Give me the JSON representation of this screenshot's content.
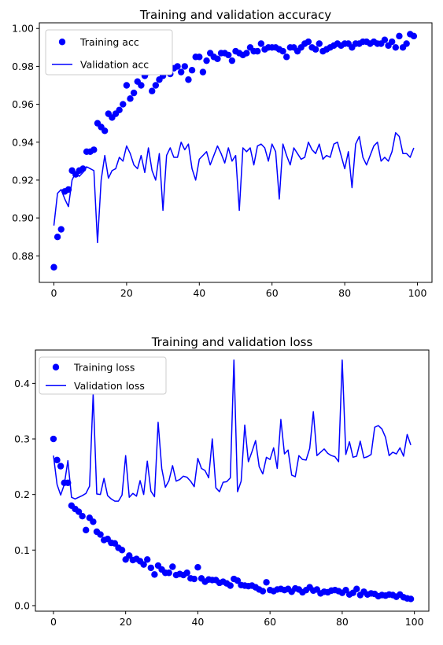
{
  "colors": {
    "series": "#0000ff",
    "axes": "#000000",
    "legend_border": "#cccccc"
  },
  "chart_data": [
    {
      "type": "line",
      "title": "Training and validation accuracy",
      "xlabel": "",
      "ylabel": "",
      "xlim": [
        -4,
        104
      ],
      "ylim": [
        0.866,
        1.003
      ],
      "xticks": [
        0,
        20,
        40,
        60,
        80,
        100
      ],
      "xtick_labels": [
        "0",
        "20",
        "40",
        "60",
        "80",
        "100"
      ],
      "yticks": [
        0.88,
        0.9,
        0.92,
        0.94,
        0.96,
        0.98,
        1.0
      ],
      "ytick_labels": [
        "0.88",
        "0.90",
        "0.92",
        "0.94",
        "0.96",
        "0.98",
        "1.00"
      ],
      "grid": false,
      "legend_position": "upper-left",
      "series": [
        {
          "name": "Training acc",
          "style": "markers",
          "x": [
            0,
            1,
            2,
            3,
            4,
            5,
            6,
            7,
            8,
            9,
            10,
            11,
            12,
            13,
            14,
            15,
            16,
            17,
            18,
            19,
            20,
            21,
            22,
            23,
            24,
            25,
            26,
            27,
            28,
            29,
            30,
            31,
            32,
            33,
            34,
            35,
            36,
            37,
            38,
            39,
            40,
            41,
            42,
            43,
            44,
            45,
            46,
            47,
            48,
            49,
            50,
            51,
            52,
            53,
            54,
            55,
            56,
            57,
            58,
            59,
            60,
            61,
            62,
            63,
            64,
            65,
            66,
            67,
            68,
            69,
            70,
            71,
            72,
            73,
            74,
            75,
            76,
            77,
            78,
            79,
            80,
            81,
            82,
            83,
            84,
            85,
            86,
            87,
            88,
            89,
            90,
            91,
            92,
            93,
            94,
            95,
            96,
            97,
            98,
            99
          ],
          "values": [
            0.874,
            0.89,
            0.894,
            0.914,
            0.915,
            0.925,
            0.923,
            0.925,
            0.926,
            0.935,
            0.935,
            0.936,
            0.95,
            0.948,
            0.946,
            0.955,
            0.953,
            0.955,
            0.957,
            0.96,
            0.97,
            0.963,
            0.966,
            0.972,
            0.97,
            0.975,
            0.977,
            0.967,
            0.97,
            0.973,
            0.975,
            0.978,
            0.976,
            0.979,
            0.98,
            0.977,
            0.98,
            0.973,
            0.978,
            0.985,
            0.985,
            0.977,
            0.983,
            0.987,
            0.985,
            0.984,
            0.987,
            0.987,
            0.986,
            0.983,
            0.988,
            0.987,
            0.986,
            0.987,
            0.99,
            0.988,
            0.988,
            0.992,
            0.989,
            0.99,
            0.99,
            0.99,
            0.989,
            0.988,
            0.985,
            0.99,
            0.99,
            0.988,
            0.99,
            0.992,
            0.993,
            0.99,
            0.989,
            0.992,
            0.988,
            0.989,
            0.99,
            0.991,
            0.992,
            0.991,
            0.992,
            0.992,
            0.99,
            0.992,
            0.992,
            0.993,
            0.993,
            0.992,
            0.993,
            0.992,
            0.992,
            0.994,
            0.991,
            0.993,
            0.99,
            0.996,
            0.99,
            0.992,
            0.997,
            0.996
          ]
        },
        {
          "name": "Validation acc",
          "style": "line",
          "x": [
            0,
            1,
            2,
            3,
            4,
            5,
            6,
            7,
            8,
            9,
            10,
            11,
            12,
            13,
            14,
            15,
            16,
            17,
            18,
            19,
            20,
            21,
            22,
            23,
            24,
            25,
            26,
            27,
            28,
            29,
            30,
            31,
            32,
            33,
            34,
            35,
            36,
            37,
            38,
            39,
            40,
            41,
            42,
            43,
            44,
            45,
            46,
            47,
            48,
            49,
            50,
            51,
            52,
            53,
            54,
            55,
            56,
            57,
            58,
            59,
            60,
            61,
            62,
            63,
            64,
            65,
            66,
            67,
            68,
            69,
            70,
            71,
            72,
            73,
            74,
            75,
            76,
            77,
            78,
            79,
            80,
            81,
            82,
            83,
            84,
            85,
            86,
            87,
            88,
            89,
            90,
            91,
            92,
            93,
            94,
            95,
            96,
            97,
            98,
            99
          ],
          "values": [
            0.896,
            0.913,
            0.915,
            0.91,
            0.906,
            0.92,
            0.924,
            0.922,
            0.924,
            0.927,
            0.926,
            0.925,
            0.887,
            0.92,
            0.933,
            0.921,
            0.925,
            0.926,
            0.932,
            0.93,
            0.938,
            0.934,
            0.928,
            0.926,
            0.933,
            0.924,
            0.937,
            0.925,
            0.92,
            0.934,
            0.904,
            0.933,
            0.937,
            0.932,
            0.932,
            0.94,
            0.936,
            0.939,
            0.926,
            0.92,
            0.931,
            0.933,
            0.935,
            0.928,
            0.933,
            0.938,
            0.934,
            0.929,
            0.937,
            0.93,
            0.933,
            0.904,
            0.937,
            0.935,
            0.937,
            0.928,
            0.938,
            0.939,
            0.937,
            0.93,
            0.939,
            0.935,
            0.91,
            0.939,
            0.933,
            0.928,
            0.937,
            0.934,
            0.931,
            0.932,
            0.94,
            0.936,
            0.934,
            0.939,
            0.931,
            0.933,
            0.932,
            0.939,
            0.94,
            0.933,
            0.926,
            0.935,
            0.916,
            0.939,
            0.943,
            0.932,
            0.928,
            0.933,
            0.938,
            0.94,
            0.93,
            0.932,
            0.93,
            0.935,
            0.945,
            0.943,
            0.934,
            0.934,
            0.932,
            0.937
          ]
        }
      ]
    },
    {
      "type": "line",
      "title": "Training and validation loss",
      "xlabel": "",
      "ylabel": "",
      "xlim": [
        -5,
        104
      ],
      "ylim": [
        -0.01,
        0.46
      ],
      "xticks": [
        0,
        20,
        40,
        60,
        80,
        100
      ],
      "xtick_labels": [
        "0",
        "20",
        "40",
        "60",
        "80",
        "100"
      ],
      "yticks": [
        0.0,
        0.1,
        0.2,
        0.3,
        0.4
      ],
      "ytick_labels": [
        "0.0",
        "0.1",
        "0.2",
        "0.3",
        "0.4"
      ],
      "grid": false,
      "legend_position": "upper-left",
      "series": [
        {
          "name": "Training loss",
          "style": "markers",
          "x": [
            0,
            1,
            2,
            3,
            4,
            5,
            6,
            7,
            8,
            9,
            10,
            11,
            12,
            13,
            14,
            15,
            16,
            17,
            18,
            19,
            20,
            21,
            22,
            23,
            24,
            25,
            26,
            27,
            28,
            29,
            30,
            31,
            32,
            33,
            34,
            35,
            36,
            37,
            38,
            39,
            40,
            41,
            42,
            43,
            44,
            45,
            46,
            47,
            48,
            49,
            50,
            51,
            52,
            53,
            54,
            55,
            56,
            57,
            58,
            59,
            60,
            61,
            62,
            63,
            64,
            65,
            66,
            67,
            68,
            69,
            70,
            71,
            72,
            73,
            74,
            75,
            76,
            77,
            78,
            79,
            80,
            81,
            82,
            83,
            84,
            85,
            86,
            87,
            88,
            89,
            90,
            91,
            92,
            93,
            94,
            95,
            96,
            97,
            98,
            99
          ],
          "values": [
            0.3,
            0.262,
            0.251,
            0.221,
            0.221,
            0.18,
            0.174,
            0.169,
            0.161,
            0.136,
            0.158,
            0.151,
            0.133,
            0.128,
            0.118,
            0.12,
            0.113,
            0.112,
            0.104,
            0.1,
            0.083,
            0.09,
            0.082,
            0.084,
            0.08,
            0.074,
            0.083,
            0.068,
            0.056,
            0.072,
            0.065,
            0.059,
            0.059,
            0.07,
            0.055,
            0.057,
            0.055,
            0.059,
            0.049,
            0.048,
            0.069,
            0.049,
            0.043,
            0.047,
            0.046,
            0.046,
            0.041,
            0.043,
            0.04,
            0.036,
            0.048,
            0.045,
            0.037,
            0.036,
            0.035,
            0.036,
            0.033,
            0.029,
            0.026,
            0.042,
            0.028,
            0.026,
            0.029,
            0.03,
            0.028,
            0.03,
            0.025,
            0.031,
            0.029,
            0.024,
            0.028,
            0.033,
            0.027,
            0.029,
            0.022,
            0.025,
            0.024,
            0.027,
            0.028,
            0.026,
            0.023,
            0.028,
            0.02,
            0.023,
            0.03,
            0.019,
            0.025,
            0.02,
            0.022,
            0.021,
            0.017,
            0.019,
            0.018,
            0.02,
            0.019,
            0.016,
            0.02,
            0.015,
            0.013,
            0.012
          ]
        },
        {
          "name": "Validation loss",
          "style": "line",
          "x": [
            0,
            1,
            2,
            3,
            4,
            5,
            6,
            7,
            8,
            9,
            10,
            11,
            12,
            13,
            14,
            15,
            16,
            17,
            18,
            19,
            20,
            21,
            22,
            23,
            24,
            25,
            26,
            27,
            28,
            29,
            30,
            31,
            32,
            33,
            34,
            35,
            36,
            37,
            38,
            39,
            40,
            41,
            42,
            43,
            44,
            45,
            46,
            47,
            48,
            49,
            50,
            51,
            52,
            53,
            54,
            55,
            56,
            57,
            58,
            59,
            60,
            61,
            62,
            63,
            64,
            65,
            66,
            67,
            68,
            69,
            70,
            71,
            72,
            73,
            74,
            75,
            76,
            77,
            78,
            79,
            80,
            81,
            82,
            83,
            84,
            85,
            86,
            87,
            88,
            89,
            90,
            91,
            92,
            93,
            94,
            95,
            96,
            97,
            98,
            99
          ],
          "values": [
            0.27,
            0.218,
            0.199,
            0.218,
            0.261,
            0.195,
            0.192,
            0.195,
            0.198,
            0.202,
            0.215,
            0.381,
            0.201,
            0.2,
            0.229,
            0.198,
            0.192,
            0.188,
            0.188,
            0.199,
            0.27,
            0.195,
            0.202,
            0.197,
            0.225,
            0.2,
            0.26,
            0.206,
            0.196,
            0.33,
            0.247,
            0.213,
            0.225,
            0.252,
            0.224,
            0.227,
            0.233,
            0.231,
            0.224,
            0.214,
            0.265,
            0.247,
            0.243,
            0.23,
            0.3,
            0.212,
            0.205,
            0.222,
            0.223,
            0.23,
            0.442,
            0.205,
            0.224,
            0.325,
            0.259,
            0.277,
            0.297,
            0.25,
            0.237,
            0.267,
            0.263,
            0.284,
            0.247,
            0.335,
            0.273,
            0.28,
            0.235,
            0.232,
            0.27,
            0.263,
            0.262,
            0.283,
            0.349,
            0.27,
            0.276,
            0.282,
            0.274,
            0.27,
            0.268,
            0.259,
            0.442,
            0.272,
            0.295,
            0.267,
            0.269,
            0.296,
            0.266,
            0.268,
            0.272,
            0.321,
            0.324,
            0.318,
            0.303,
            0.27,
            0.276,
            0.273,
            0.284,
            0.269,
            0.308,
            0.289
          ]
        }
      ]
    }
  ]
}
